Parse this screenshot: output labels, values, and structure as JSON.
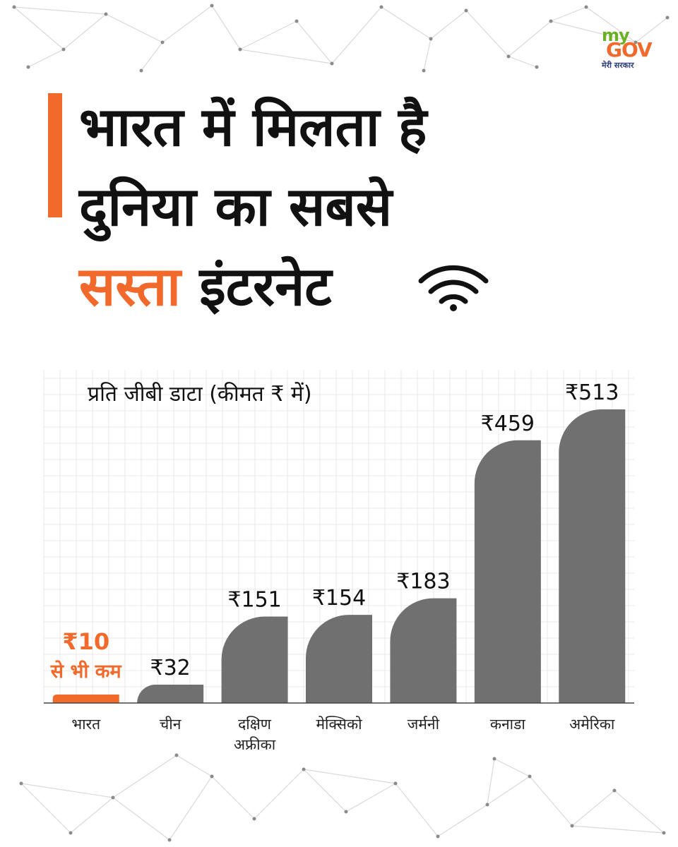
{
  "brand": {
    "logo_my": "my",
    "logo_gov": "GOV",
    "logo_tagline": "मेरी सरकार"
  },
  "headline": {
    "line1": "भारत में मिलता है",
    "line2": "दुनिया का सबसे",
    "line3_highlight": "सस्ता",
    "line3_rest": "इंटरनेट"
  },
  "icons": {
    "wifi": "wifi-icon"
  },
  "colors": {
    "accent": "#f26a2b",
    "bar": "#707070",
    "text": "#111111"
  },
  "chart_data": {
    "type": "bar",
    "title": "प्रति जीबी डाटा (कीमत ₹ में)",
    "xlabel": "",
    "ylabel": "",
    "ylim": [
      0,
      513
    ],
    "grid": true,
    "categories": [
      [
        "भारत"
      ],
      [
        "चीन"
      ],
      [
        "दक्षिण",
        "अफ्रीका"
      ],
      [
        "मेक्सिको"
      ],
      [
        "जर्मनी"
      ],
      [
        "कनाडा"
      ],
      [
        "अमेरिका"
      ]
    ],
    "values": [
      10,
      32,
      151,
      154,
      183,
      459,
      513
    ],
    "value_labels": [
      "₹10",
      "₹32",
      "₹151",
      "₹154",
      "₹183",
      "₹459",
      "₹513"
    ],
    "highlight_index": 0,
    "highlight_note": "से भी कम"
  }
}
